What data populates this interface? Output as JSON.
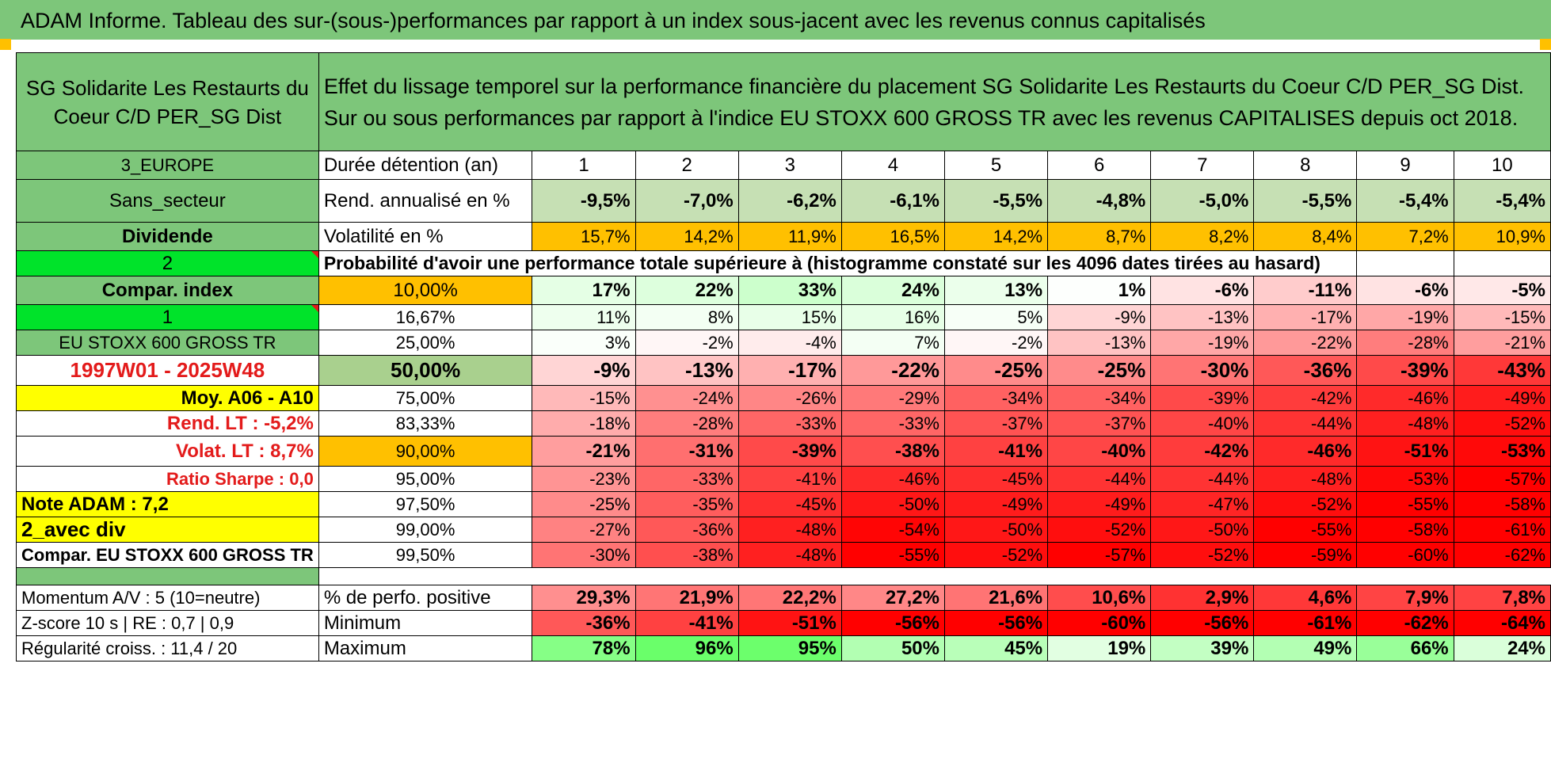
{
  "title": "ADAM Informe. Tableau des sur-(sous-)performances par rapport à un index sous-jacent avec les revenus connus capitalisés",
  "fund_name": "SG Solidarite Les Restaurts du Coeur C/D PER_SG Dist",
  "description": "Effet du lissage temporel sur la performance financière du placement SG Solidarite Les Restaurts du Coeur C/D PER_SG Dist. Sur ou sous performances par rapport à l'indice EU STOXX 600 GROSS TR avec les revenus CAPITALISES depuis oct 2018.",
  "left": {
    "region": "3_EUROPE",
    "sector": "Sans_secteur",
    "dividend": "Dividende",
    "num2": "2",
    "compar_index": "Compar. index",
    "num1": "1",
    "index_name": "EU STOXX 600 GROSS TR",
    "period": "1997W01 - 2025W48",
    "moy": "Moy. A06 - A10",
    "rend_lt": "Rend. LT :   -5,2%",
    "volat_lt": "Volat. LT :   8,7%",
    "sharpe": "Ratio Sharpe :    0,0",
    "note": "Note ADAM : 7,2",
    "avec_div": "2_avec div",
    "compar_eu": "Compar. EU STOXX 600 GROSS TR",
    "momentum": "Momentum A/V : 5 (10=neutre)",
    "zscore": "Z-score 10 s | RE : 0,7 | 0,9",
    "regularite": "Régularité croiss. : 11,4 / 20"
  },
  "labels": {
    "duree": "Durée détention (an)",
    "rend": "Rend. annualisé en %",
    "vol": "Volatilité en %",
    "proba": "Probabilité d'avoir une performance totale supérieure à (histogramme constaté sur les 4096 dates tirées au hasard)",
    "pct_pos": "% de perfo. positive",
    "minimum": "Minimum",
    "maximum": "Maximum"
  },
  "years": [
    "1",
    "2",
    "3",
    "4",
    "5",
    "6",
    "7",
    "8",
    "9",
    "10"
  ],
  "rend": [
    "-9,5%",
    "-7,0%",
    "-6,2%",
    "-6,1%",
    "-5,5%",
    "-4,8%",
    "-5,0%",
    "-5,5%",
    "-5,4%",
    "-5,4%"
  ],
  "vol": [
    "15,7%",
    "14,2%",
    "11,9%",
    "16,5%",
    "14,2%",
    "8,7%",
    "8,2%",
    "8,4%",
    "7,2%",
    "10,9%"
  ],
  "vol_highlight": [
    true,
    false,
    false,
    true,
    false,
    false,
    false,
    false,
    false,
    true
  ],
  "percentiles": [
    {
      "p": "10,00%",
      "vals": [
        "17%",
        "22%",
        "33%",
        "24%",
        "13%",
        "1%",
        "-6%",
        "-11%",
        "-6%",
        "-5%"
      ]
    },
    {
      "p": "16,67%",
      "vals": [
        "11%",
        "8%",
        "15%",
        "16%",
        "5%",
        "-9%",
        "-13%",
        "-17%",
        "-19%",
        "-15%"
      ]
    },
    {
      "p": "25,00%",
      "vals": [
        "3%",
        "-2%",
        "-4%",
        "7%",
        "-2%",
        "-13%",
        "-19%",
        "-22%",
        "-28%",
        "-21%"
      ]
    },
    {
      "p": "50,00%",
      "vals": [
        "-9%",
        "-13%",
        "-17%",
        "-22%",
        "-25%",
        "-25%",
        "-30%",
        "-36%",
        "-39%",
        "-43%"
      ]
    },
    {
      "p": "75,00%",
      "vals": [
        "-15%",
        "-24%",
        "-26%",
        "-29%",
        "-34%",
        "-34%",
        "-39%",
        "-42%",
        "-46%",
        "-49%"
      ]
    },
    {
      "p": "83,33%",
      "vals": [
        "-18%",
        "-28%",
        "-33%",
        "-33%",
        "-37%",
        "-37%",
        "-40%",
        "-44%",
        "-48%",
        "-52%"
      ]
    },
    {
      "p": "90,00%",
      "vals": [
        "-21%",
        "-31%",
        "-39%",
        "-38%",
        "-41%",
        "-40%",
        "-42%",
        "-46%",
        "-51%",
        "-53%"
      ]
    },
    {
      "p": "95,00%",
      "vals": [
        "-23%",
        "-33%",
        "-41%",
        "-46%",
        "-45%",
        "-44%",
        "-44%",
        "-48%",
        "-53%",
        "-57%"
      ]
    },
    {
      "p": "97,50%",
      "vals": [
        "-25%",
        "-35%",
        "-45%",
        "-50%",
        "-49%",
        "-49%",
        "-47%",
        "-52%",
        "-55%",
        "-58%"
      ]
    },
    {
      "p": "99,00%",
      "vals": [
        "-27%",
        "-36%",
        "-48%",
        "-54%",
        "-50%",
        "-52%",
        "-50%",
        "-55%",
        "-58%",
        "-61%"
      ]
    },
    {
      "p": "99,50%",
      "vals": [
        "-30%",
        "-38%",
        "-48%",
        "-55%",
        "-52%",
        "-57%",
        "-52%",
        "-59%",
        "-60%",
        "-62%"
      ]
    }
  ],
  "pct_positive": [
    "29,3%",
    "21,9%",
    "22,2%",
    "27,2%",
    "21,6%",
    "10,6%",
    "2,9%",
    "4,6%",
    "7,9%",
    "7,8%"
  ],
  "minimum": [
    "-36%",
    "-41%",
    "-51%",
    "-56%",
    "-56%",
    "-60%",
    "-56%",
    "-61%",
    "-62%",
    "-64%"
  ],
  "maximum": [
    "78%",
    "96%",
    "95%",
    "50%",
    "45%",
    "19%",
    "39%",
    "49%",
    "66%",
    "24%"
  ],
  "colors": {
    "header_green": "#7dc67a",
    "lime": "#00e32a",
    "yellow": "#ffff00",
    "orange": "#ffc000",
    "text_red": "#e31b1b"
  }
}
